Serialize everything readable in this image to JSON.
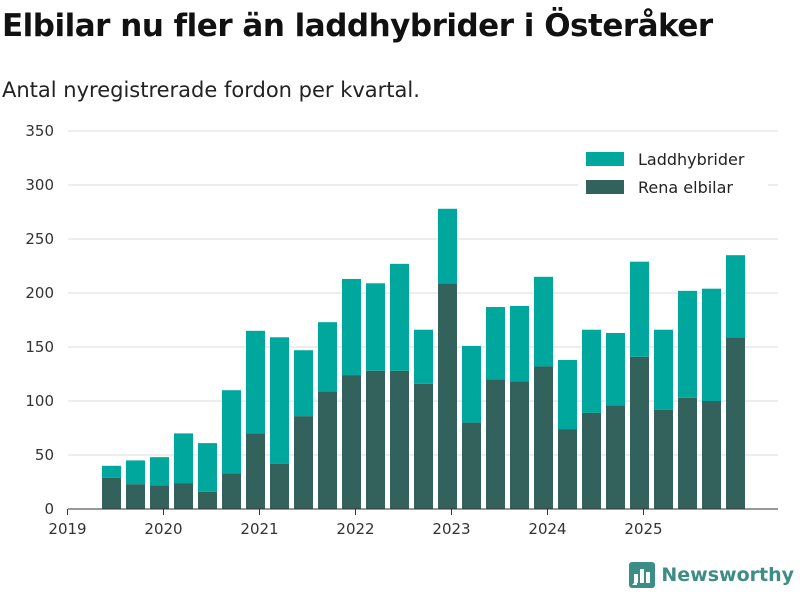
{
  "title": "Elbilar nu fler än laddhybrider i Österåker",
  "subtitle": "Antal nyregistrerade fordon per kvartal.",
  "brand": "Newsworthy",
  "colors": {
    "laddhybrider": "#00a79d",
    "elbilar": "#33625c",
    "grid": "#dddddd",
    "axis": "#333333"
  },
  "chart_data": {
    "type": "bar",
    "stacked": true,
    "title": "Elbilar nu fler än laddhybrider i Österåker",
    "subtitle": "Antal nyregistrerade fordon per kvartal.",
    "xlabel": "",
    "ylabel": "",
    "ylim": [
      0,
      350
    ],
    "yticks": [
      0,
      50,
      100,
      150,
      200,
      250,
      300,
      350
    ],
    "x_year_ticks": [
      "2019",
      "2020",
      "2021",
      "2022",
      "2023",
      "2024",
      "2025"
    ],
    "legend_position": "top-right",
    "categories": [
      "2019 Q2",
      "2019 Q3",
      "2019 Q4",
      "2020 Q1",
      "2020 Q2",
      "2020 Q3",
      "2020 Q4",
      "2021 Q1",
      "2021 Q2",
      "2021 Q3",
      "2021 Q4",
      "2022 Q1",
      "2022 Q2",
      "2022 Q3",
      "2022 Q4",
      "2023 Q1",
      "2023 Q2",
      "2023 Q3",
      "2023 Q4",
      "2024 Q1",
      "2024 Q2",
      "2024 Q3",
      "2024 Q4",
      "2025 Q1",
      "2025 Q2",
      "2025 Q3",
      "2025 Q4"
    ],
    "series": [
      {
        "name": "Rena elbilar",
        "values": [
          29,
          23,
          22,
          24,
          16,
          33,
          70,
          42,
          86,
          109,
          124,
          128,
          128,
          116,
          209,
          80,
          120,
          118,
          132,
          74,
          89,
          96,
          141,
          92,
          103,
          100,
          159
        ]
      },
      {
        "name": "Laddhybrider",
        "values": [
          11,
          22,
          26,
          46,
          45,
          77,
          95,
          117,
          61,
          64,
          89,
          81,
          99,
          50,
          69,
          71,
          67,
          70,
          83,
          64,
          77,
          67,
          88,
          74,
          99,
          104,
          76
        ]
      }
    ]
  }
}
